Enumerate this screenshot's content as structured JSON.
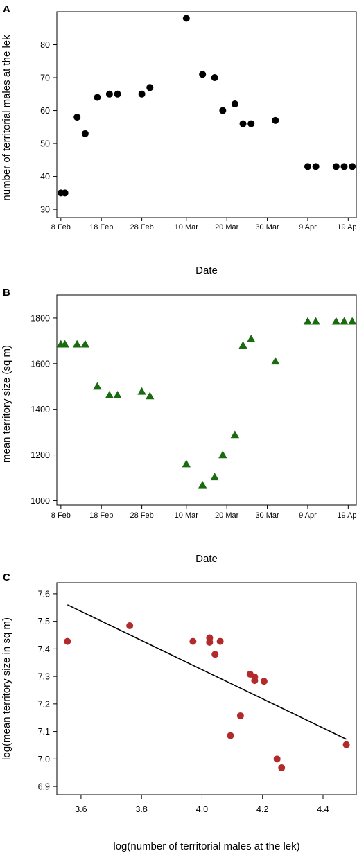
{
  "chart_data": [
    {
      "type": "scatter",
      "panel_label": "A",
      "xlabel": "Date",
      "ylabel": "number of territorial males at the lek",
      "x_ticks": [
        "8 Feb",
        "18 Feb",
        "28 Feb",
        "10 Mar",
        "20 Mar",
        "30 Mar",
        "9 Apr",
        "19 Apr"
      ],
      "y_ticks": [
        30,
        40,
        50,
        60,
        70,
        80
      ],
      "xlim": [
        "2020-02-07",
        "2020-04-21"
      ],
      "ylim": [
        27.5,
        90
      ],
      "marker": "circle",
      "color": "#000000",
      "points": [
        {
          "x": "2020-02-08",
          "y": 35
        },
        {
          "x": "2020-02-09",
          "y": 35
        },
        {
          "x": "2020-02-12",
          "y": 58
        },
        {
          "x": "2020-02-14",
          "y": 53
        },
        {
          "x": "2020-02-17",
          "y": 64
        },
        {
          "x": "2020-02-20",
          "y": 65
        },
        {
          "x": "2020-02-22",
          "y": 65
        },
        {
          "x": "2020-02-28",
          "y": 65
        },
        {
          "x": "2020-03-01",
          "y": 67
        },
        {
          "x": "2020-03-10",
          "y": 88
        },
        {
          "x": "2020-03-14",
          "y": 71
        },
        {
          "x": "2020-03-17",
          "y": 70
        },
        {
          "x": "2020-03-19",
          "y": 60
        },
        {
          "x": "2020-03-22",
          "y": 62
        },
        {
          "x": "2020-03-24",
          "y": 56
        },
        {
          "x": "2020-03-26",
          "y": 56
        },
        {
          "x": "2020-04-01",
          "y": 57
        },
        {
          "x": "2020-04-09",
          "y": 43
        },
        {
          "x": "2020-04-11",
          "y": 43
        },
        {
          "x": "2020-04-16",
          "y": 43
        },
        {
          "x": "2020-04-18",
          "y": 43
        },
        {
          "x": "2020-04-20",
          "y": 43
        }
      ]
    },
    {
      "type": "scatter",
      "panel_label": "B",
      "xlabel": "Date",
      "ylabel": "mean territory size (sq m)",
      "x_ticks": [
        "8 Feb",
        "18 Feb",
        "28 Feb",
        "10 Mar",
        "20 Mar",
        "30 Mar",
        "9 Apr",
        "19 Apr"
      ],
      "y_ticks": [
        1000,
        1200,
        1400,
        1600,
        1800
      ],
      "xlim": [
        "2020-02-07",
        "2020-04-21"
      ],
      "ylim": [
        980,
        1900
      ],
      "marker": "triangle",
      "color": "#1a6b10",
      "points": [
        {
          "x": "2020-02-08",
          "y": 1685
        },
        {
          "x": "2020-02-09",
          "y": 1685
        },
        {
          "x": "2020-02-12",
          "y": 1685
        },
        {
          "x": "2020-02-14",
          "y": 1685
        },
        {
          "x": "2020-02-17",
          "y": 1500
        },
        {
          "x": "2020-02-20",
          "y": 1462
        },
        {
          "x": "2020-02-22",
          "y": 1462
        },
        {
          "x": "2020-02-28",
          "y": 1478
        },
        {
          "x": "2020-03-01",
          "y": 1458
        },
        {
          "x": "2020-03-10",
          "y": 1160
        },
        {
          "x": "2020-03-14",
          "y": 1068
        },
        {
          "x": "2020-03-17",
          "y": 1103
        },
        {
          "x": "2020-03-19",
          "y": 1200
        },
        {
          "x": "2020-03-22",
          "y": 1288
        },
        {
          "x": "2020-03-24",
          "y": 1680
        },
        {
          "x": "2020-03-26",
          "y": 1708
        },
        {
          "x": "2020-04-01",
          "y": 1610
        },
        {
          "x": "2020-04-09",
          "y": 1785
        },
        {
          "x": "2020-04-11",
          "y": 1785
        },
        {
          "x": "2020-04-16",
          "y": 1785
        },
        {
          "x": "2020-04-18",
          "y": 1785
        },
        {
          "x": "2020-04-20",
          "y": 1785
        }
      ]
    },
    {
      "type": "scatter",
      "panel_label": "C",
      "xlabel": "log(number of territorial males at the lek)",
      "ylabel": "log(mean territory size in sq m)",
      "x_ticks": [
        "3.6",
        "3.8",
        "4.0",
        "4.2",
        "4.4"
      ],
      "y_ticks": [
        "6.9",
        "7.0",
        "7.1",
        "7.2",
        "7.3",
        "7.4",
        "7.5",
        "7.6"
      ],
      "xlim": [
        3.52,
        4.51
      ],
      "ylim": [
        6.87,
        7.64
      ],
      "marker": "circle",
      "color": "#b22a2a",
      "points": [
        {
          "x": 3.555,
          "y": 7.427
        },
        {
          "x": 3.761,
          "y": 7.484
        },
        {
          "x": 3.97,
          "y": 7.427
        },
        {
          "x": 4.025,
          "y": 7.44
        },
        {
          "x": 4.025,
          "y": 7.424
        },
        {
          "x": 4.043,
          "y": 7.38
        },
        {
          "x": 4.06,
          "y": 7.427
        },
        {
          "x": 4.094,
          "y": 7.085
        },
        {
          "x": 4.127,
          "y": 7.157
        },
        {
          "x": 4.159,
          "y": 7.308
        },
        {
          "x": 4.174,
          "y": 7.298
        },
        {
          "x": 4.174,
          "y": 7.285
        },
        {
          "x": 4.205,
          "y": 7.282
        },
        {
          "x": 4.248,
          "y": 7.0
        },
        {
          "x": 4.263,
          "y": 6.968
        },
        {
          "x": 4.477,
          "y": 7.052
        }
      ],
      "fit_line": {
        "x": [
          3.555,
          4.477
        ],
        "y": [
          7.56,
          7.072
        ]
      }
    }
  ]
}
